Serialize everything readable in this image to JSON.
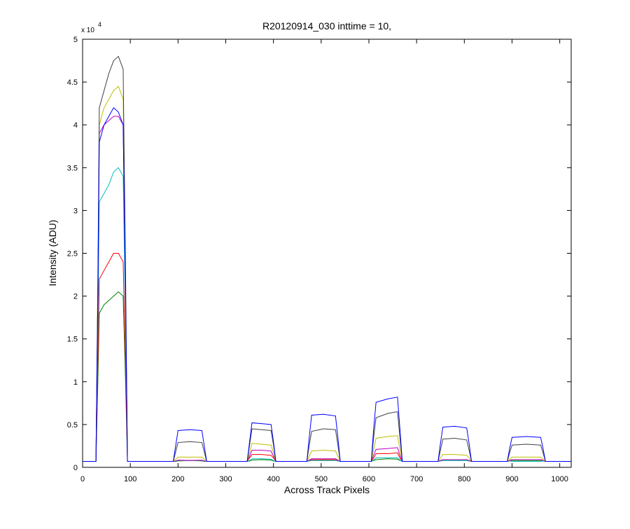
{
  "chart_data": {
    "type": "line",
    "title": "R20120914_030 inttime = 10,",
    "x_label": "Across Track Pixels",
    "y_label": "Intensity (ADU)",
    "y_exponent_base": "x 10",
    "y_exponent": "4",
    "xlim": [
      0,
      1024
    ],
    "ylim": [
      0,
      50000
    ],
    "xticks": [
      0,
      100,
      200,
      300,
      400,
      500,
      600,
      700,
      800,
      900,
      1000
    ],
    "yticks": [
      {
        "value": 0,
        "label": "0"
      },
      {
        "value": 5000,
        "label": "0.5"
      },
      {
        "value": 10000,
        "label": "1"
      },
      {
        "value": 15000,
        "label": "1.5"
      },
      {
        "value": 20000,
        "label": "2"
      },
      {
        "value": 25000,
        "label": "2.5"
      },
      {
        "value": 30000,
        "label": "3"
      },
      {
        "value": 35000,
        "label": "3.5"
      },
      {
        "value": 40000,
        "label": "4"
      },
      {
        "value": 45000,
        "label": "4.5"
      },
      {
        "value": 50000,
        "label": "5"
      }
    ],
    "grid": false,
    "x": [
      0,
      28,
      32,
      35,
      45,
      55,
      65,
      75,
      85,
      90,
      94,
      100,
      190,
      195,
      200,
      225,
      250,
      255,
      260,
      345,
      350,
      355,
      375,
      395,
      400,
      405,
      470,
      475,
      480,
      505,
      530,
      535,
      540,
      605,
      610,
      615,
      640,
      660,
      665,
      670,
      745,
      750,
      755,
      780,
      805,
      810,
      815,
      890,
      895,
      900,
      930,
      960,
      965,
      970,
      1024
    ],
    "series": [
      {
        "color": "#008000",
        "values": [
          700,
          700,
          10000,
          18000,
          19000,
          19500,
          20000,
          20500,
          20000,
          10000,
          700,
          700,
          700,
          700,
          750,
          800,
          750,
          700,
          700,
          700,
          750,
          850,
          900,
          850,
          750,
          700,
          700,
          750,
          800,
          800,
          800,
          750,
          700,
          700,
          800,
          900,
          1000,
          950,
          800,
          700,
          700,
          750,
          800,
          800,
          800,
          750,
          700,
          700,
          750,
          800,
          800,
          800,
          750,
          700,
          700
        ]
      },
      {
        "color": "#ff0000",
        "values": [
          700,
          700,
          12000,
          22000,
          23000,
          24000,
          25000,
          25000,
          24000,
          12000,
          700,
          700,
          700,
          750,
          800,
          800,
          800,
          750,
          700,
          700,
          1100,
          1500,
          1500,
          1400,
          1100,
          700,
          700,
          800,
          900,
          900,
          900,
          800,
          700,
          700,
          1100,
          1600,
          1600,
          1700,
          1100,
          700,
          700,
          800,
          900,
          900,
          900,
          800,
          700,
          700,
          800,
          900,
          900,
          900,
          800,
          700,
          700
        ]
      },
      {
        "color": "#00bfbf",
        "values": [
          700,
          700,
          16000,
          31000,
          32000,
          33000,
          34500,
          35000,
          34000,
          17000,
          700,
          700,
          700,
          750,
          800,
          800,
          800,
          750,
          700,
          700,
          800,
          1000,
          1000,
          950,
          800,
          700,
          700,
          750,
          800,
          800,
          800,
          750,
          700,
          700,
          850,
          1100,
          1100,
          1100,
          850,
          700,
          700,
          750,
          800,
          800,
          800,
          750,
          700,
          700,
          750,
          700,
          700,
          700,
          750,
          700,
          700
        ]
      },
      {
        "color": "#bf00bf",
        "values": [
          700,
          700,
          20000,
          39000,
          40000,
          40500,
          41000,
          41000,
          40000,
          20000,
          700,
          700,
          700,
          750,
          850,
          800,
          850,
          750,
          700,
          700,
          1300,
          2000,
          2000,
          1900,
          1300,
          700,
          700,
          850,
          1000,
          1000,
          1000,
          850,
          700,
          700,
          1400,
          2100,
          2200,
          2300,
          1400,
          700,
          700,
          800,
          900,
          900,
          900,
          800,
          700,
          700,
          800,
          900,
          900,
          900,
          800,
          700,
          700
        ]
      },
      {
        "color": "#bfbf00",
        "values": [
          700,
          700,
          21000,
          40000,
          42000,
          43000,
          44000,
          44500,
          43000,
          21000,
          700,
          700,
          700,
          950,
          1200,
          1200,
          1200,
          950,
          700,
          700,
          1700,
          2800,
          2700,
          2600,
          1700,
          700,
          700,
          1300,
          1900,
          2000,
          1900,
          1300,
          700,
          700,
          2100,
          3400,
          3600,
          3700,
          2100,
          700,
          700,
          1100,
          1500,
          1500,
          1400,
          1100,
          700,
          700,
          950,
          1200,
          1200,
          1200,
          950,
          700,
          700
        ]
      },
      {
        "color": "#404040",
        "values": [
          700,
          700,
          22000,
          42000,
          44000,
          46000,
          47500,
          48000,
          46500,
          23000,
          700,
          700,
          700,
          1800,
          2900,
          3000,
          2900,
          1800,
          700,
          700,
          2600,
          4500,
          4400,
          4300,
          2600,
          700,
          700,
          2600,
          4200,
          4500,
          4400,
          2600,
          700,
          700,
          3500,
          5800,
          6300,
          6500,
          3500,
          700,
          700,
          2000,
          3300,
          3400,
          3200,
          2000,
          700,
          700,
          1700,
          2600,
          2700,
          2600,
          1700,
          700,
          700
        ]
      },
      {
        "color": "#0000ff",
        "values": [
          700,
          700,
          20000,
          38000,
          40000,
          41000,
          42000,
          41500,
          40000,
          20000,
          700,
          700,
          700,
          2500,
          4300,
          4400,
          4300,
          2500,
          700,
          700,
          3000,
          5200,
          5100,
          5000,
          3000,
          700,
          700,
          3500,
          6100,
          6200,
          6000,
          3500,
          700,
          700,
          4500,
          7600,
          8000,
          8200,
          4500,
          700,
          700,
          2800,
          4700,
          4800,
          4600,
          2800,
          700,
          700,
          2200,
          3500,
          3600,
          3500,
          2200,
          700,
          700
        ]
      }
    ]
  }
}
